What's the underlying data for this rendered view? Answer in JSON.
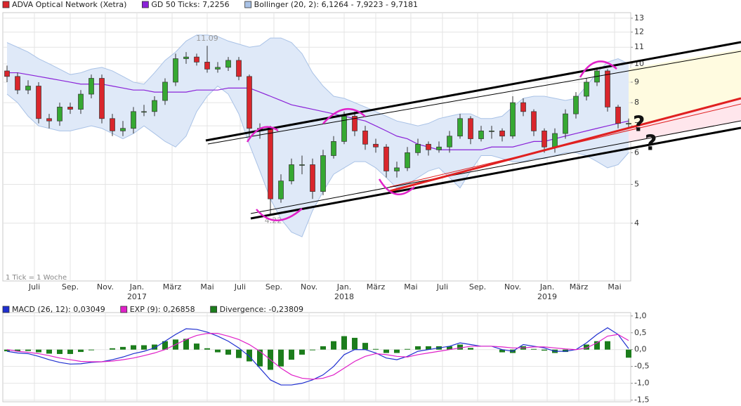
{
  "chart_data": [
    {
      "type": "candlestick",
      "categories": [
        null,
        null,
        null,
        null,
        null,
        null,
        null,
        null,
        null,
        null,
        null,
        null,
        null,
        null,
        null,
        null,
        null,
        null,
        null,
        null,
        null,
        null,
        null,
        null,
        null,
        null,
        null,
        null,
        null,
        null,
        null,
        null,
        null,
        null,
        null,
        null,
        null,
        null,
        null,
        null,
        null,
        null,
        null,
        null,
        null,
        null,
        null,
        null,
        null,
        null,
        null,
        null,
        null,
        null,
        null,
        null,
        null,
        null,
        null,
        null
      ],
      "series": [
        {
          "name": "ADVA Optical Network (Xetra)",
          "color": "#d9262c",
          "up_color": "#36a832",
          "open": [
            9.6,
            9.3,
            8.6,
            8.8,
            7.3,
            7.2,
            7.8,
            7.7,
            8.4,
            9.2,
            7.3,
            6.8,
            6.9,
            7.6,
            7.6,
            8.1,
            9.0,
            10.3,
            10.4,
            10.1,
            9.7,
            9.8,
            10.2,
            9.3,
            6.9,
            6.9,
            4.6,
            5.1,
            5.6,
            5.6,
            4.8,
            5.9,
            6.4,
            7.4,
            6.8,
            6.3,
            6.2,
            5.4,
            5.5,
            6.0,
            6.3,
            6.1,
            6.2,
            6.6,
            7.3,
            6.5,
            6.8,
            6.8,
            6.6,
            8.0,
            7.6,
            6.8,
            6.2,
            6.7,
            7.5,
            8.3,
            9.0,
            9.6,
            7.8,
            7.1
          ],
          "high": [
            9.9,
            9.5,
            9.1,
            9.0,
            7.5,
            8.0,
            8.0,
            8.6,
            9.4,
            9.4,
            7.5,
            7.2,
            7.8,
            7.9,
            8.3,
            9.2,
            10.6,
            10.7,
            10.6,
            11.09,
            10.1,
            10.4,
            10.4,
            9.4,
            7.1,
            7.0,
            5.3,
            5.8,
            5.9,
            5.8,
            6.1,
            6.6,
            7.6,
            7.6,
            7.0,
            6.5,
            6.3,
            5.7,
            6.2,
            6.5,
            6.4,
            6.4,
            6.8,
            7.5,
            7.4,
            7.0,
            7.0,
            6.9,
            8.3,
            8.2,
            7.7,
            6.9,
            6.9,
            7.7,
            8.5,
            9.2,
            9.8,
            9.7,
            7.9,
            7.3
          ],
          "low": [
            9.0,
            8.4,
            8.4,
            7.1,
            6.9,
            7.0,
            7.5,
            7.5,
            8.2,
            7.1,
            6.6,
            6.6,
            6.7,
            7.4,
            7.4,
            7.9,
            8.8,
            10.0,
            9.9,
            9.5,
            9.5,
            9.6,
            9.1,
            6.6,
            6.5,
            4.22,
            4.5,
            5.0,
            5.3,
            4.6,
            4.7,
            5.8,
            6.3,
            6.6,
            6.1,
            6.0,
            5.2,
            5.2,
            5.4,
            5.9,
            5.9,
            6.0,
            6.0,
            6.5,
            6.3,
            6.4,
            6.5,
            6.4,
            6.5,
            7.4,
            6.6,
            6.0,
            6.0,
            6.5,
            7.3,
            8.1,
            8.8,
            7.6,
            6.9,
            6.9
          ],
          "close": [
            9.3,
            8.6,
            8.8,
            7.3,
            7.2,
            7.8,
            7.7,
            8.4,
            9.2,
            7.3,
            6.8,
            6.9,
            7.6,
            7.6,
            8.1,
            9.0,
            10.3,
            10.4,
            10.1,
            9.7,
            9.8,
            10.2,
            9.3,
            6.9,
            6.9,
            4.6,
            5.1,
            5.6,
            5.6,
            4.8,
            5.9,
            6.4,
            7.4,
            6.8,
            6.3,
            6.2,
            5.4,
            5.5,
            6.0,
            6.3,
            6.1,
            6.2,
            6.6,
            7.3,
            6.5,
            6.8,
            6.8,
            6.6,
            8.0,
            7.6,
            6.8,
            6.2,
            6.7,
            7.5,
            8.3,
            9.0,
            9.6,
            7.8,
            7.1,
            7.1
          ]
        },
        {
          "name": "GD 50 Ticks: 7,2256",
          "color": "#8a22d8",
          "values": [
            9.5,
            9.5,
            9.4,
            9.3,
            9.2,
            9.1,
            9.0,
            8.9,
            8.9,
            8.9,
            8.8,
            8.7,
            8.6,
            8.6,
            8.5,
            8.5,
            8.5,
            8.5,
            8.6,
            8.6,
            8.6,
            8.7,
            8.7,
            8.7,
            8.5,
            8.3,
            8.1,
            7.9,
            7.8,
            7.7,
            7.6,
            7.5,
            7.4,
            7.3,
            7.2,
            7.0,
            6.8,
            6.6,
            6.5,
            6.3,
            6.2,
            6.1,
            6.1,
            6.1,
            6.1,
            6.1,
            6.2,
            6.2,
            6.2,
            6.3,
            6.4,
            6.4,
            6.5,
            6.6,
            6.7,
            6.8,
            6.9,
            7.0,
            7.1,
            7.2
          ]
        },
        {
          "name": "Bollinger (20, 2): 6,1264 - 7,9223 - 9,7181",
          "color": "#a9c2e6",
          "fill": "#dfe9f8",
          "upper": [
            11.3,
            11.0,
            10.7,
            10.3,
            10.0,
            9.7,
            9.4,
            9.5,
            9.7,
            9.8,
            9.6,
            9.3,
            9.0,
            8.9,
            9.5,
            10.2,
            10.7,
            11.4,
            11.8,
            11.8,
            11.7,
            11.4,
            11.2,
            11.0,
            11.1,
            11.6,
            11.6,
            11.3,
            10.6,
            9.5,
            8.8,
            8.3,
            8.2,
            8.0,
            7.8,
            7.6,
            7.4,
            7.2,
            7.1,
            7.0,
            7.1,
            7.3,
            7.4,
            7.5,
            7.5,
            7.3,
            7.3,
            7.4,
            7.8,
            8.2,
            8.3,
            8.3,
            8.2,
            8.1,
            8.2,
            8.8,
            9.5,
            10.1,
            10.3,
            10.0
          ],
          "lower": [
            8.4,
            8.0,
            7.4,
            7.0,
            6.9,
            6.8,
            6.8,
            6.9,
            7.0,
            6.9,
            6.7,
            6.5,
            6.7,
            7.0,
            6.7,
            6.4,
            6.2,
            6.6,
            7.6,
            8.3,
            8.8,
            8.4,
            7.5,
            6.3,
            5.4,
            4.6,
            4.1,
            3.8,
            3.7,
            4.3,
            4.8,
            5.3,
            5.5,
            5.7,
            5.7,
            5.5,
            5.2,
            4.9,
            5.0,
            5.2,
            5.4,
            5.5,
            5.2,
            4.9,
            5.4,
            5.9,
            5.9,
            5.8,
            5.7,
            5.7,
            5.8,
            5.8,
            5.9,
            6.0,
            6.0,
            5.9,
            5.7,
            5.5,
            5.6,
            6.0
          ]
        }
      ],
      "xlim": [
        -0.4,
        59.2
      ],
      "ylim": [
        2.87,
        13.42
      ],
      "log_scale": true,
      "yticks": [
        4,
        5,
        6,
        7,
        8,
        9,
        10,
        11,
        12,
        13
      ],
      "xticks": [
        {
          "value": 2.6,
          "label": "Juli"
        },
        {
          "value": 6,
          "label": "Sep."
        },
        {
          "value": 9.33,
          "label": "Nov."
        },
        {
          "value": 12.33,
          "label": "Jan."
        },
        {
          "value": 15.67,
          "label": "März"
        },
        {
          "value": 19,
          "label": "Mai"
        },
        {
          "value": 22.13,
          "label": "Juli"
        },
        {
          "value": 25.33,
          "label": "Sep."
        },
        {
          "value": 28.67,
          "label": "Nov."
        },
        {
          "value": 32,
          "label": "Jan."
        },
        {
          "value": 35,
          "label": "März"
        },
        {
          "value": 38.33,
          "label": "Mai"
        },
        {
          "value": 41.33,
          "label": "Juli"
        },
        {
          "value": 44.67,
          "label": "Sep."
        },
        {
          "value": 48,
          "label": "Nov."
        },
        {
          "value": 51.27,
          "label": "Jan."
        },
        {
          "value": 54.27,
          "label": "März"
        },
        {
          "value": 57.67,
          "label": "Mai"
        }
      ],
      "year_ticks": [
        {
          "value": 12.33,
          "label": "2017"
        },
        {
          "value": 32,
          "label": "2018"
        },
        {
          "value": 51.27,
          "label": "2019"
        }
      ],
      "grid": true,
      "note": "1 Tick = 1 Woche",
      "annotations": [
        "?",
        "?"
      ]
    },
    {
      "type": "macd",
      "categories": [
        null,
        null,
        null,
        null,
        null,
        null,
        null,
        null,
        null,
        null,
        null,
        null,
        null,
        null,
        null,
        null,
        null,
        null,
        null,
        null,
        null,
        null,
        null,
        null,
        null,
        null,
        null,
        null,
        null,
        null,
        null,
        null,
        null,
        null,
        null,
        null,
        null,
        null,
        null,
        null,
        null,
        null,
        null,
        null,
        null,
        null,
        null,
        null,
        null,
        null,
        null,
        null,
        null,
        null,
        null,
        null,
        null,
        null,
        null,
        null
      ],
      "series": [
        {
          "name": "MACD (26, 12): 0,03049",
          "color": "#1f2fd0",
          "values": [
            -0.05,
            -0.1,
            -0.12,
            -0.2,
            -0.3,
            -0.38,
            -0.43,
            -0.42,
            -0.38,
            -0.36,
            -0.3,
            -0.22,
            -0.12,
            -0.05,
            0.05,
            0.25,
            0.45,
            0.62,
            0.6,
            0.52,
            0.4,
            0.25,
            0.05,
            -0.2,
            -0.55,
            -0.9,
            -1.05,
            -1.05,
            -1.0,
            -0.9,
            -0.75,
            -0.5,
            -0.15,
            0.0,
            0.0,
            -0.1,
            -0.25,
            -0.3,
            -0.2,
            -0.05,
            0.0,
            0.05,
            0.1,
            0.2,
            0.15,
            0.1,
            0.1,
            0.0,
            -0.05,
            0.15,
            0.1,
            0.05,
            -0.05,
            -0.05,
            0.0,
            0.2,
            0.45,
            0.65,
            0.45,
            0.03
          ]
        },
        {
          "name": "EXP (9): 0,26858",
          "color": "#e020c8",
          "values": [
            0.0,
            -0.05,
            -0.08,
            -0.12,
            -0.18,
            -0.25,
            -0.3,
            -0.35,
            -0.36,
            -0.36,
            -0.34,
            -0.3,
            -0.25,
            -0.18,
            -0.1,
            0.0,
            0.15,
            0.3,
            0.42,
            0.48,
            0.48,
            0.4,
            0.3,
            0.15,
            -0.05,
            -0.3,
            -0.55,
            -0.75,
            -0.85,
            -0.88,
            -0.85,
            -0.75,
            -0.55,
            -0.35,
            -0.2,
            -0.12,
            -0.15,
            -0.2,
            -0.22,
            -0.15,
            -0.1,
            -0.05,
            0.0,
            0.05,
            0.1,
            0.1,
            0.1,
            0.08,
            0.05,
            0.05,
            0.08,
            0.08,
            0.05,
            0.02,
            0.0,
            0.05,
            0.2,
            0.4,
            0.45,
            0.27
          ]
        },
        {
          "name": "Divergence: -0,23809",
          "color": "#1c7d1c",
          "type": "bar",
          "values": [
            -0.05,
            -0.05,
            -0.04,
            -0.08,
            -0.12,
            -0.13,
            -0.13,
            -0.07,
            -0.02,
            0.0,
            0.04,
            0.08,
            0.13,
            0.13,
            0.15,
            0.25,
            0.3,
            0.32,
            0.18,
            0.04,
            -0.08,
            -0.15,
            -0.25,
            -0.35,
            -0.5,
            -0.6,
            -0.5,
            -0.3,
            -0.15,
            -0.02,
            0.1,
            0.25,
            0.4,
            0.35,
            0.2,
            0.02,
            -0.1,
            -0.1,
            0.02,
            0.1,
            0.1,
            0.1,
            0.1,
            0.15,
            0.05,
            0.0,
            0.0,
            -0.08,
            -0.1,
            0.1,
            0.02,
            -0.03,
            -0.1,
            -0.07,
            0.0,
            0.15,
            0.25,
            0.25,
            0.0,
            -0.24
          ]
        }
      ],
      "xlim": [
        -0.4,
        59.2
      ],
      "ylim": [
        -1.55,
        1.1
      ],
      "yticks": [
        {
          "value": 1,
          "label": "1,0"
        },
        {
          "value": 0.5,
          "label": "0,5"
        },
        {
          "value": 0,
          "label": "0,0"
        },
        {
          "value": -0.5,
          "label": "-0,5"
        },
        {
          "value": -1,
          "label": "-1,0"
        },
        {
          "value": -1.5,
          "label": "-1,5"
        }
      ],
      "grid": true
    }
  ]
}
